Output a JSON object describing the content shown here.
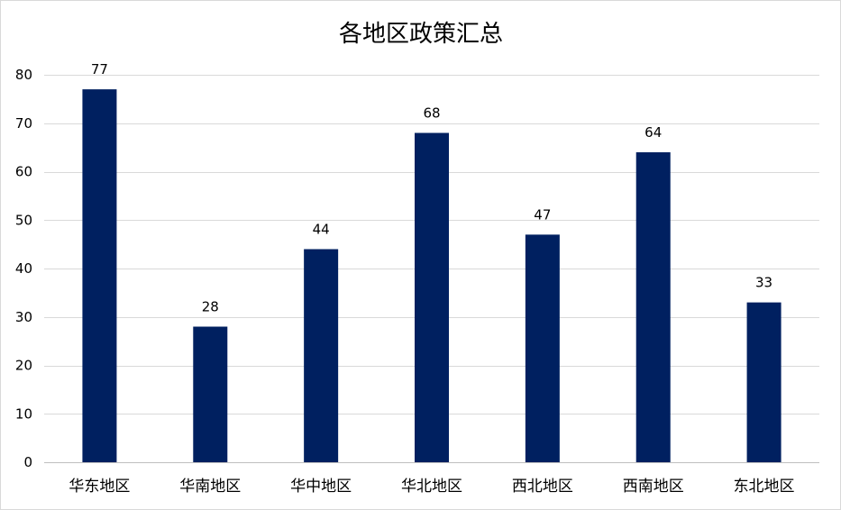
{
  "chart_data": {
    "type": "bar",
    "title": "各地区政策汇总",
    "categories": [
      "华东地区",
      "华南地区",
      "华中地区",
      "华北地区",
      "西北地区",
      "西南地区",
      "东北地区"
    ],
    "values": [
      77,
      28,
      44,
      68,
      47,
      64,
      33
    ],
    "ylim": [
      0,
      80
    ],
    "yticks": [
      0,
      10,
      20,
      30,
      40,
      50,
      60,
      70,
      80
    ],
    "bar_color": "#002060",
    "gridlines": true,
    "legend": "none",
    "data_labels": true
  }
}
